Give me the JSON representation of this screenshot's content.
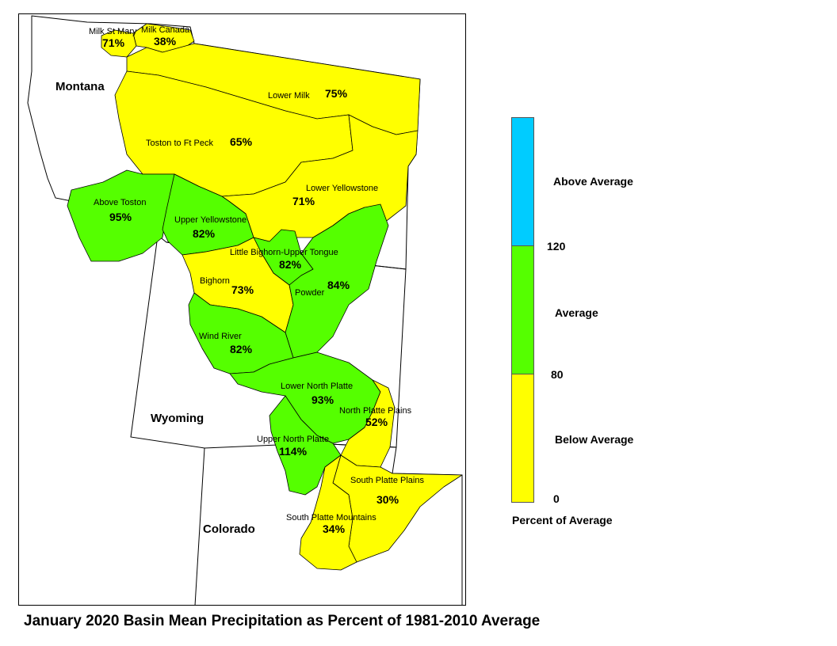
{
  "colors": {
    "below": "#ffff00",
    "average": "#55ff00",
    "above": "#00ccff"
  },
  "states": {
    "montana": "Montana",
    "wyoming": "Wyoming",
    "colorado": "Colorado"
  },
  "basins": [
    {
      "name": "Milk St Mary",
      "pct": "71%",
      "cls": "below"
    },
    {
      "name": "Milk Canada",
      "pct": "38%",
      "cls": "below"
    },
    {
      "name": "Lower Milk",
      "pct": "75%",
      "cls": "below"
    },
    {
      "name": "Toston to Ft Peck",
      "pct": "65%",
      "cls": "below"
    },
    {
      "name": "Lower Yellowstone",
      "pct": "71%",
      "cls": "below"
    },
    {
      "name": "Above Toston",
      "pct": "95%",
      "cls": "average"
    },
    {
      "name": "Upper Yellowstone",
      "pct": "82%",
      "cls": "average"
    },
    {
      "name": "Little Bighorn-Upper Tongue",
      "pct": "82%",
      "cls": "average"
    },
    {
      "name": "Bighorn",
      "pct": "73%",
      "cls": "below"
    },
    {
      "name": "Powder",
      "pct": "84%",
      "cls": "average"
    },
    {
      "name": "Wind River",
      "pct": "82%",
      "cls": "average"
    },
    {
      "name": "Lower North Platte",
      "pct": "93%",
      "cls": "average"
    },
    {
      "name": "North Platte Plains",
      "pct": "52%",
      "cls": "below"
    },
    {
      "name": "Upper North Platte",
      "pct": "114%",
      "cls": "average"
    },
    {
      "name": "South Platte Plains",
      "pct": "30%",
      "cls": "below"
    },
    {
      "name": "South Platte Mountains",
      "pct": "34%",
      "cls": "below"
    }
  ],
  "legend": {
    "title": "Percent of Average",
    "above_label": "Above Average",
    "average_label": "Average",
    "below_label": "Below Average",
    "tick_120": "120",
    "tick_80": "80",
    "tick_0": "0"
  },
  "title": "January 2020 Basin Mean Precipitation as Percent of 1981-2010 Average"
}
